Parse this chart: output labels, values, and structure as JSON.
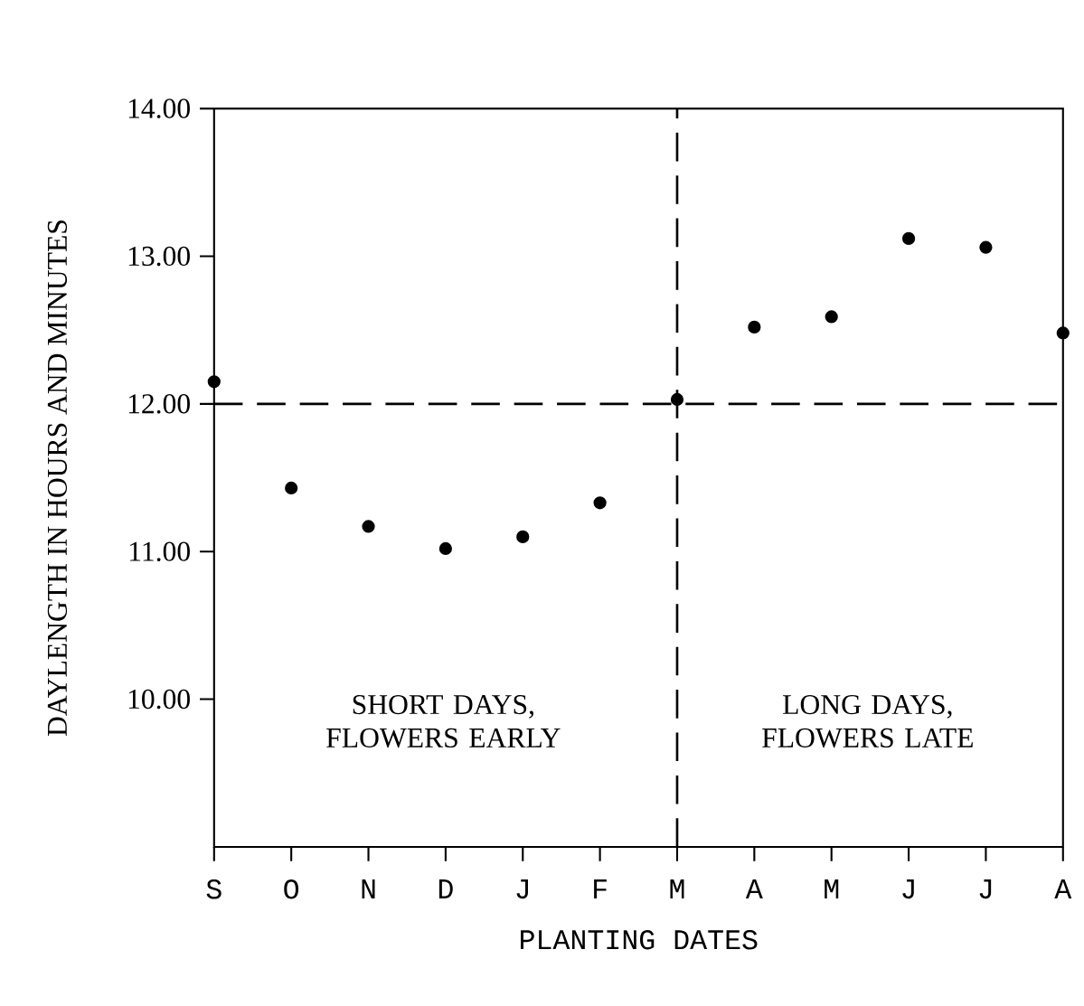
{
  "chart_data": {
    "type": "scatter",
    "xlabel": "PLANTING DATES",
    "ylabel": "DAYLENGTH IN HOURS AND MINUTES",
    "categories": [
      "S",
      "O",
      "N",
      "D",
      "J",
      "F",
      "M",
      "A",
      "M",
      "J",
      "J",
      "A"
    ],
    "series": [
      {
        "color": "#000000",
        "values": [
          12.15,
          11.43,
          11.17,
          11.02,
          11.1,
          11.33,
          12.03,
          12.52,
          12.59,
          13.12,
          13.06,
          12.48
        ]
      }
    ],
    "ylim": [
      9,
      14
    ],
    "yticks": [
      {
        "value": 10,
        "label": "10.00"
      },
      {
        "value": 11,
        "label": "11.00"
      },
      {
        "value": 12,
        "label": "12.00"
      },
      {
        "value": 13,
        "label": "13.00"
      },
      {
        "value": 14,
        "label": "14.00"
      }
    ],
    "marker": "circle",
    "grid": false,
    "ref_lines": [
      {
        "axis": "y",
        "value": 12,
        "line_style": "dashed"
      },
      {
        "axis": "x",
        "value": "M",
        "line_style": "dashed"
      }
    ],
    "annotations": [
      "SHORT DAYS, FLOWERS EARLY",
      "LONG DAYS, FLOWERS LATE"
    ]
  }
}
